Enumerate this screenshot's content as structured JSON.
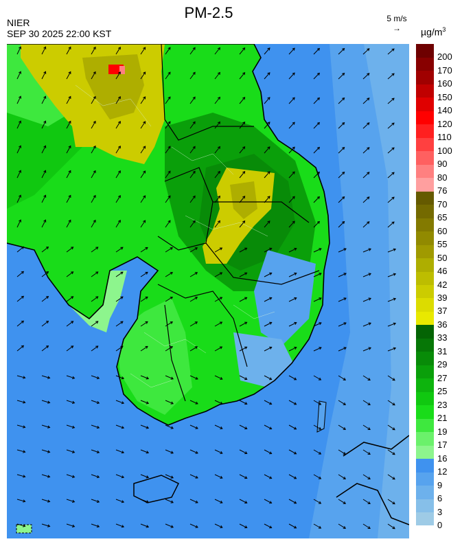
{
  "header": {
    "title": "PM-2.5",
    "agency": "NIER",
    "timestamp": "SEP 30 2025 22:00 KST"
  },
  "wind_scale": {
    "label": "5 m/s",
    "arrow": "→"
  },
  "legend": {
    "unit_base": "µg/m",
    "unit_exp": "3",
    "bins": [
      {
        "label": "0",
        "color": "#9ecbe6"
      },
      {
        "label": "3",
        "color": "#86bfe9"
      },
      {
        "label": "6",
        "color": "#6db1ec"
      },
      {
        "label": "9",
        "color": "#57a3ee"
      },
      {
        "label": "12",
        "color": "#3f92ef"
      },
      {
        "label": "16",
        "color": "#8df58d"
      },
      {
        "label": "17",
        "color": "#6bf16b"
      },
      {
        "label": "19",
        "color": "#3ee83e"
      },
      {
        "label": "21",
        "color": "#19dc19"
      },
      {
        "label": "23",
        "color": "#10c810"
      },
      {
        "label": "25",
        "color": "#0db40d"
      },
      {
        "label": "27",
        "color": "#0a9f0a"
      },
      {
        "label": "29",
        "color": "#088b08"
      },
      {
        "label": "31",
        "color": "#067706"
      },
      {
        "label": "33",
        "color": "#046404"
      },
      {
        "label": "36",
        "color": "#e9e900"
      },
      {
        "label": "37",
        "color": "#dcdc00"
      },
      {
        "label": "39",
        "color": "#cccc00"
      },
      {
        "label": "42",
        "color": "#bdbd00"
      },
      {
        "label": "46",
        "color": "#aeae00"
      },
      {
        "label": "50",
        "color": "#a09a00"
      },
      {
        "label": "55",
        "color": "#918a00"
      },
      {
        "label": "60",
        "color": "#837a00"
      },
      {
        "label": "65",
        "color": "#746a00"
      },
      {
        "label": "70",
        "color": "#655a00"
      },
      {
        "label": "76",
        "color": "#ff9f9f"
      },
      {
        "label": "80",
        "color": "#ff8080"
      },
      {
        "label": "90",
        "color": "#ff6060"
      },
      {
        "label": "100",
        "color": "#ff4040"
      },
      {
        "label": "110",
        "color": "#ff2020"
      },
      {
        "label": "120",
        "color": "#ff0000"
      },
      {
        "label": "140",
        "color": "#e00000"
      },
      {
        "label": "150",
        "color": "#c00000"
      },
      {
        "label": "160",
        "color": "#a00000"
      },
      {
        "label": "170",
        "color": "#880000"
      },
      {
        "label": "200",
        "color": "#6e0000"
      }
    ]
  },
  "map": {
    "sea_color": "#3f92ef",
    "background_color": "#57a3ee"
  }
}
